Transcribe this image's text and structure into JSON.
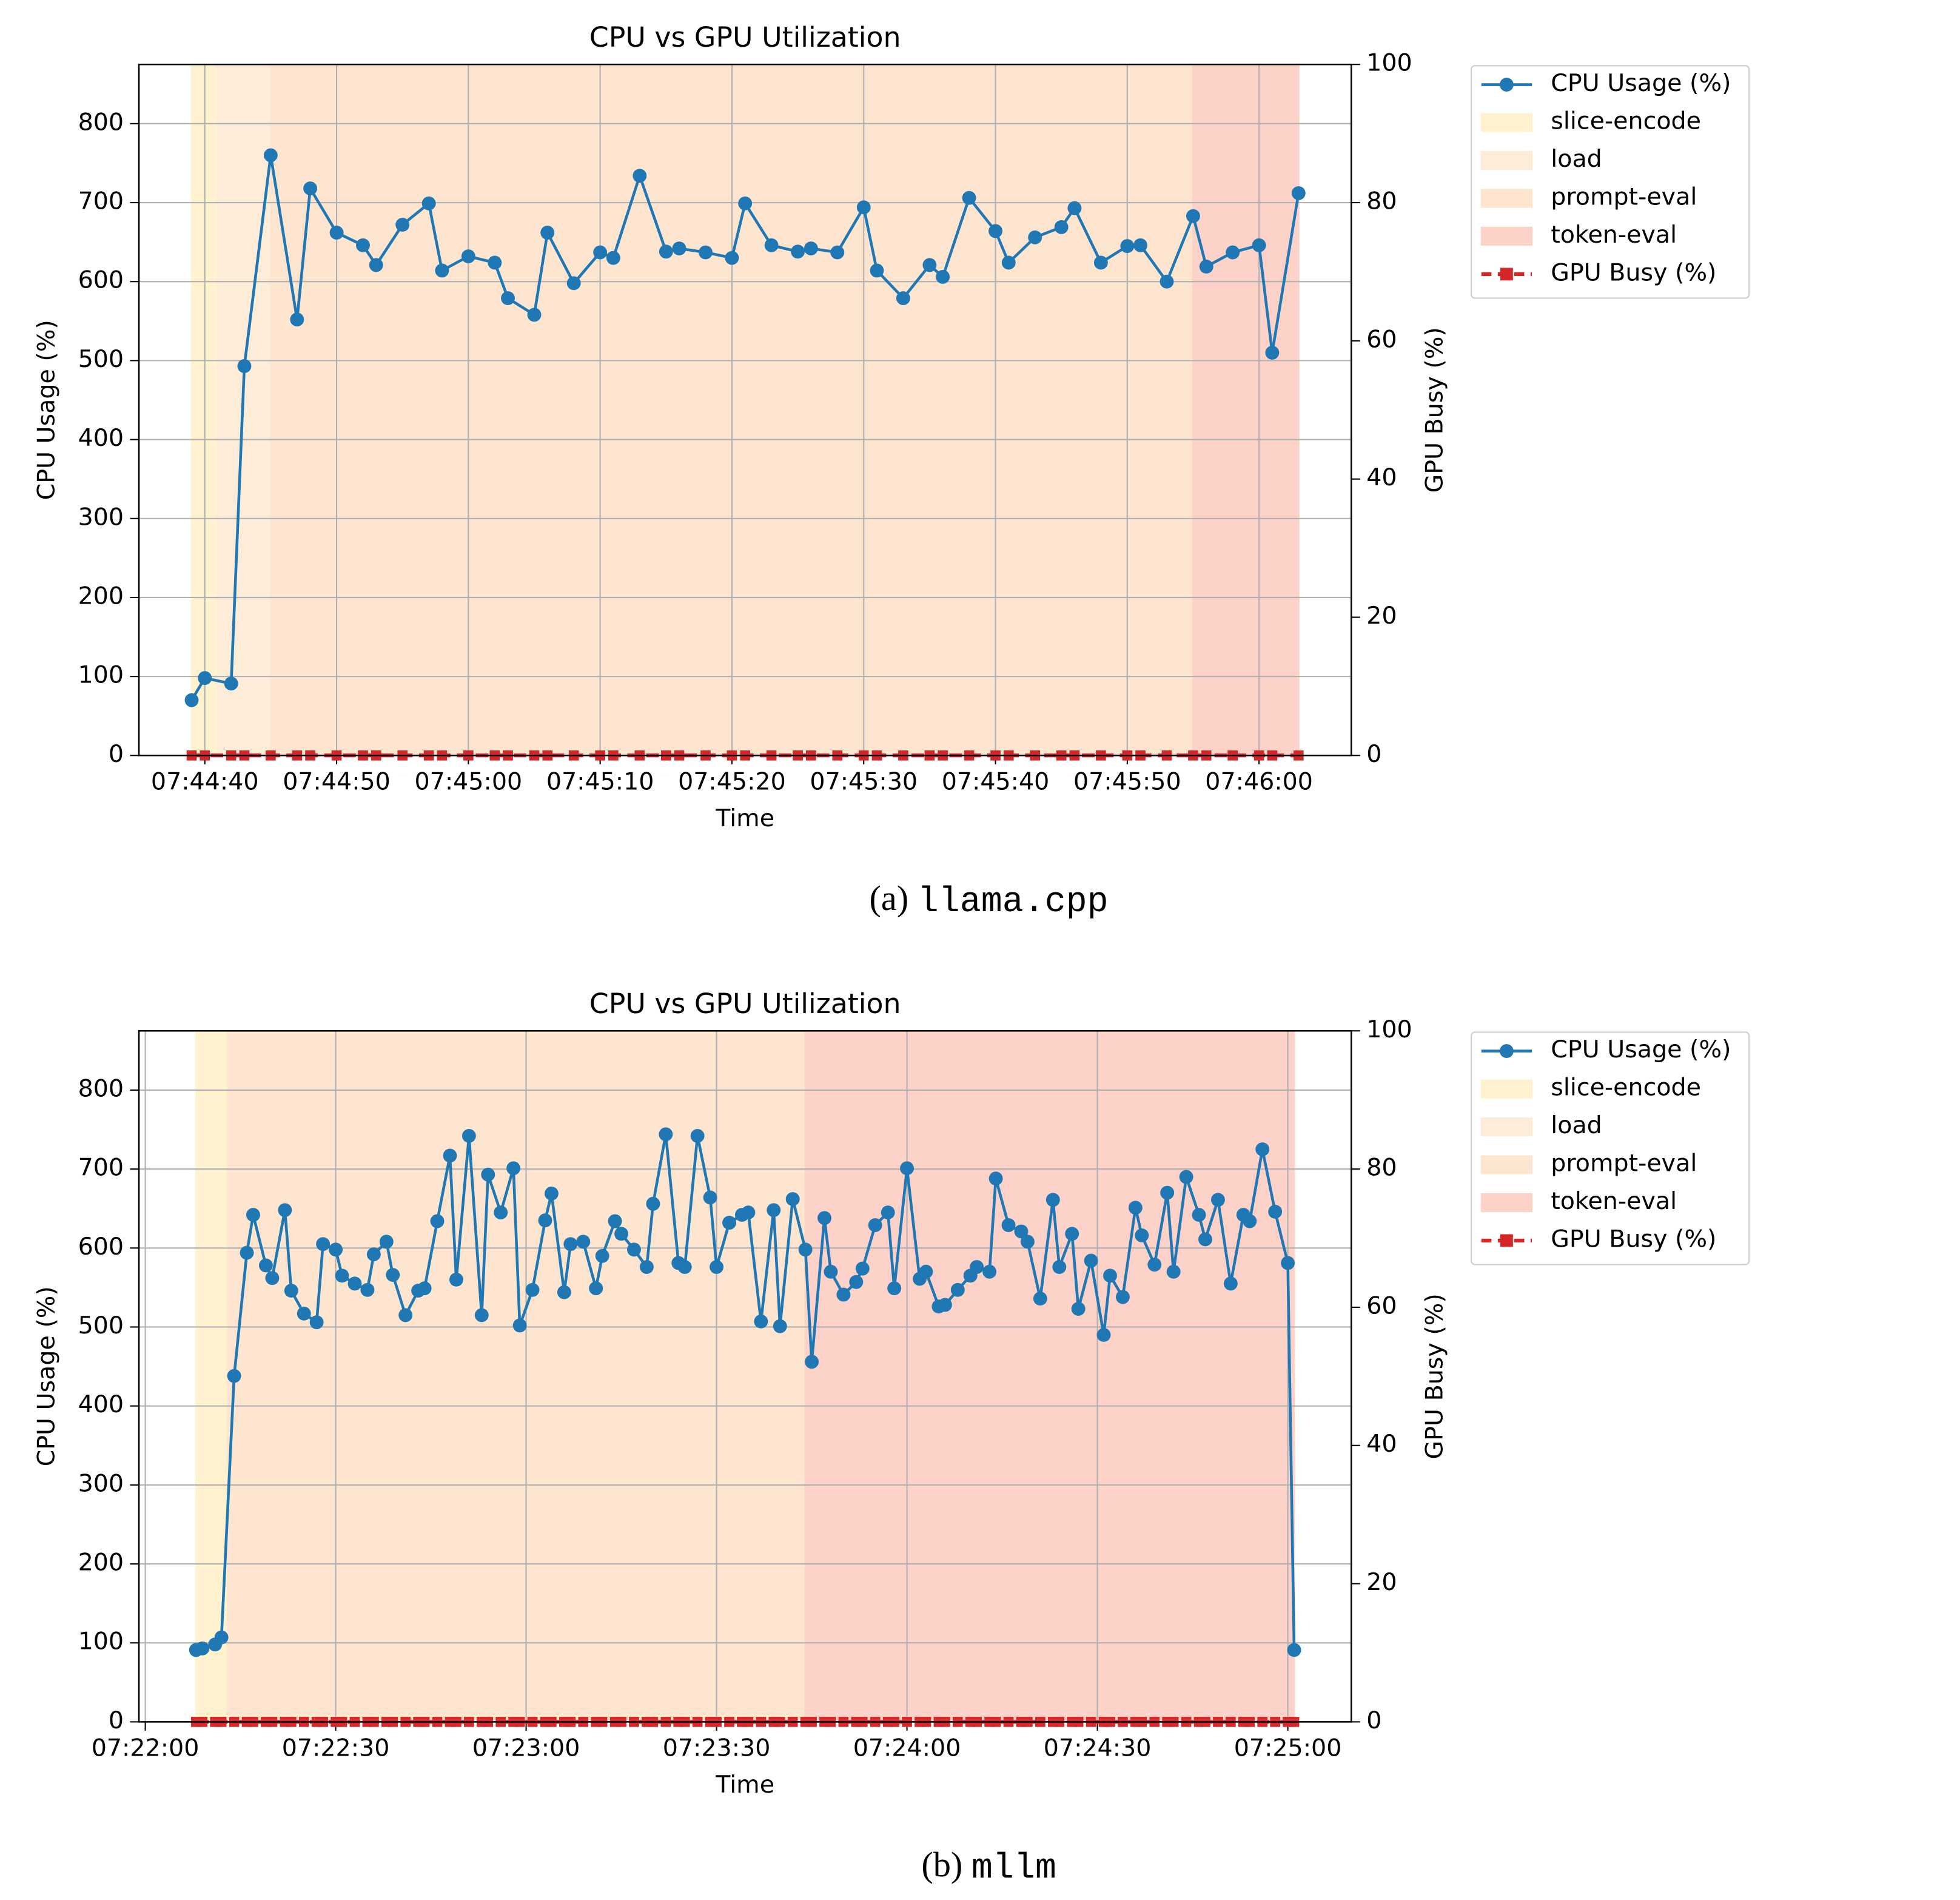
{
  "chart_data": [
    {
      "type": "line",
      "title": "CPU vs GPU Utilization",
      "xlabel": "Time",
      "ylabel": "CPU Usage (%)",
      "y2label": "GPU Busy (%)",
      "caption_label": "(a)",
      "caption_code": "llama.cpp",
      "x": [
        "07:44:39",
        "07:44:40",
        "07:44:42",
        "07:44:43",
        "07:44:45",
        "07:44:47",
        "07:44:48",
        "07:44:50",
        "07:44:52",
        "07:44:53",
        "07:44:55",
        "07:44:57",
        "07:44:58",
        "07:45:00",
        "07:45:02",
        "07:45:03",
        "07:45:05",
        "07:45:06",
        "07:45:08",
        "07:45:10",
        "07:45:11",
        "07:45:13",
        "07:45:15",
        "07:45:16",
        "07:45:18",
        "07:45:20",
        "07:45:21",
        "07:45:23",
        "07:45:25",
        "07:45:26",
        "07:45:28",
        "07:45:30",
        "07:45:31",
        "07:45:33",
        "07:45:35",
        "07:45:36",
        "07:45:38",
        "07:45:40",
        "07:45:41",
        "07:45:43",
        "07:45:45",
        "07:45:46",
        "07:45:48",
        "07:45:50",
        "07:45:51",
        "07:45:53",
        "07:45:55",
        "07:45:56",
        "07:45:58",
        "07:46:00",
        "07:46:01",
        "07:46:03"
      ],
      "series": [
        {
          "name": "CPU Usage (%)",
          "color": "#1f77b4",
          "values": [
            70,
            98,
            91,
            493,
            760,
            552,
            718,
            662,
            646,
            621,
            672,
            699,
            614,
            632,
            624,
            579,
            558,
            662,
            598,
            637,
            630,
            734,
            638,
            642,
            637,
            630,
            699,
            646,
            638,
            642,
            637,
            694,
            614,
            579,
            621,
            606,
            706,
            664,
            624,
            656,
            669,
            693,
            624,
            645,
            646,
            600,
            683,
            619,
            637,
            646,
            510,
            712
          ]
        },
        {
          "name": "GPU Busy (%)",
          "color": "#d62728",
          "axis": "y2",
          "values": [
            0,
            0,
            0,
            0,
            0,
            0,
            0,
            0,
            0,
            0,
            0,
            0,
            0,
            0,
            0,
            0,
            0,
            0,
            0,
            0,
            0,
            0,
            0,
            0,
            0,
            0,
            0,
            0,
            0,
            0,
            0,
            0,
            0,
            0,
            0,
            0,
            0,
            0,
            0,
            0,
            0,
            0,
            0,
            0,
            0,
            0,
            0,
            0,
            0,
            0,
            0,
            0
          ]
        }
      ],
      "phases": [
        {
          "name": "slice-encode",
          "color": "#fff3cf",
          "start": "07:44:39",
          "end": "07:44:41"
        },
        {
          "name": "load",
          "color": "#fdecd8",
          "start": "07:44:41",
          "end": "07:44:45"
        },
        {
          "name": "prompt-eval",
          "color": "#fde5d0",
          "start": "07:44:45",
          "end": "07:45:55"
        },
        {
          "name": "token-eval",
          "color": "#fdd2c8",
          "start": "07:45:55",
          "end": "07:46:03"
        }
      ],
      "xlim": [
        "07:44:35",
        "07:46:07"
      ],
      "xticks": [
        "07:44:40",
        "07:44:50",
        "07:45:00",
        "07:45:10",
        "07:45:20",
        "07:45:30",
        "07:45:40",
        "07:45:50",
        "07:46:00"
      ],
      "ylim": [
        0,
        875
      ],
      "yticks": [
        0,
        100,
        200,
        300,
        400,
        500,
        600,
        700,
        800
      ],
      "y2lim": [
        0,
        100
      ],
      "y2ticks": [
        0,
        20,
        40,
        60,
        80,
        100
      ],
      "grid": true,
      "legend": "outside right"
    },
    {
      "type": "line",
      "title": "CPU vs GPU Utilization",
      "xlabel": "Time",
      "ylabel": "CPU Usage (%)",
      "y2label": "GPU Busy (%)",
      "caption_label": "(b)",
      "caption_code": "mllm",
      "x": [
        "07:22:08",
        "07:22:09",
        "07:22:11",
        "07:22:12",
        "07:22:14",
        "07:22:16",
        "07:22:17",
        "07:22:19",
        "07:22:20",
        "07:22:22",
        "07:22:23",
        "07:22:25",
        "07:22:27",
        "07:22:28",
        "07:22:30",
        "07:22:31",
        "07:22:33",
        "07:22:35",
        "07:22:36",
        "07:22:38",
        "07:22:39",
        "07:22:41",
        "07:22:43",
        "07:22:44",
        "07:22:46",
        "07:22:48",
        "07:22:49",
        "07:22:51",
        "07:22:53",
        "07:22:54",
        "07:22:56",
        "07:22:58",
        "07:22:59",
        "07:23:01",
        "07:23:03",
        "07:23:04",
        "07:23:06",
        "07:23:07",
        "07:23:09",
        "07:23:11",
        "07:23:12",
        "07:23:14",
        "07:23:15",
        "07:23:17",
        "07:23:19",
        "07:23:20",
        "07:23:22",
        "07:23:24",
        "07:23:25",
        "07:23:27",
        "07:23:29",
        "07:23:30",
        "07:23:32",
        "07:23:34",
        "07:23:35",
        "07:23:37",
        "07:23:39",
        "07:23:40",
        "07:23:42",
        "07:23:44",
        "07:23:45",
        "07:23:47",
        "07:23:48",
        "07:23:50",
        "07:23:52",
        "07:23:53",
        "07:23:55",
        "07:23:57",
        "07:23:58",
        "07:24:00",
        "07:24:02",
        "07:24:03",
        "07:24:05",
        "07:24:06",
        "07:24:08",
        "07:24:10",
        "07:24:11",
        "07:24:13",
        "07:24:14",
        "07:24:16",
        "07:24:18",
        "07:24:19",
        "07:24:21",
        "07:24:23",
        "07:24:24",
        "07:24:26",
        "07:24:27",
        "07:24:29",
        "07:24:31",
        "07:24:32",
        "07:24:34",
        "07:24:36",
        "07:24:37",
        "07:24:39",
        "07:24:41",
        "07:24:42",
        "07:24:44",
        "07:24:46",
        "07:24:47",
        "07:24:49",
        "07:24:51",
        "07:24:53",
        "07:24:54",
        "07:24:56",
        "07:24:58",
        "07:25:00",
        "07:25:01"
      ],
      "series": [
        {
          "name": "CPU Usage (%)",
          "color": "#1f77b4",
          "values": [
            91,
            93,
            98,
            107,
            438,
            594,
            642,
            578,
            562,
            648,
            546,
            517,
            506,
            605,
            598,
            565,
            555,
            547,
            592,
            608,
            566,
            515,
            546,
            549,
            634,
            717,
            560,
            742,
            515,
            693,
            645,
            701,
            502,
            547,
            635,
            669,
            544,
            605,
            608,
            549,
            590,
            634,
            618,
            598,
            576,
            656,
            744,
            581,
            576,
            742,
            664,
            576,
            632,
            642,
            645,
            507,
            648,
            501,
            662,
            598,
            456,
            638,
            570,
            541,
            557,
            574,
            629,
            645,
            549,
            701,
            561,
            570,
            526,
            528,
            547,
            565,
            576,
            570,
            688,
            629,
            621,
            608,
            536,
            661,
            576,
            618,
            523,
            584,
            490,
            565,
            538,
            651,
            616,
            579,
            670,
            570,
            690,
            642,
            611,
            661,
            555,
            642,
            634,
            725,
            646,
            581,
            91
          ]
        },
        {
          "name": "GPU Busy (%)",
          "color": "#d62728",
          "axis": "y2",
          "values": [
            0,
            0,
            0,
            0,
            0,
            0,
            0,
            0,
            0,
            0,
            0,
            0,
            0,
            0,
            0,
            0,
            0,
            0,
            0,
            0,
            0,
            0,
            0,
            0,
            0,
            0,
            0,
            0,
            0,
            0,
            0,
            0,
            0,
            0,
            0,
            0,
            0,
            0,
            0,
            0,
            0,
            0,
            0,
            0,
            0,
            0,
            0,
            0,
            0,
            0,
            0,
            0,
            0,
            0,
            0,
            0,
            0,
            0,
            0,
            0,
            0,
            0,
            0,
            0,
            0,
            0,
            0,
            0,
            0,
            0,
            0,
            0,
            0,
            0,
            0,
            0,
            0,
            0,
            0,
            0,
            0,
            0,
            0,
            0,
            0,
            0,
            0,
            0,
            0,
            0,
            0,
            0,
            0,
            0,
            0,
            0,
            0,
            0,
            0,
            0,
            0,
            0,
            0,
            0,
            0,
            0,
            0
          ]
        }
      ],
      "phases": [
        {
          "name": "slice-encode",
          "color": "#fff3cf",
          "start": "07:22:08",
          "end": "07:22:13"
        },
        {
          "name": "load",
          "color": "#fdecd8",
          "start": "07:22:13",
          "end": "07:22:13"
        },
        {
          "name": "prompt-eval",
          "color": "#fde5d0",
          "start": "07:22:13",
          "end": "07:23:44"
        },
        {
          "name": "token-eval",
          "color": "#fdd2c8",
          "start": "07:23:44",
          "end": "07:25:01"
        }
      ],
      "xlim": [
        "07:21:59",
        "07:25:10"
      ],
      "xticks": [
        "07:22:00",
        "07:22:30",
        "07:23:00",
        "07:23:30",
        "07:24:00",
        "07:24:30",
        "07:25:00"
      ],
      "ylim": [
        0,
        875
      ],
      "yticks": [
        0,
        100,
        200,
        300,
        400,
        500,
        600,
        700,
        800
      ],
      "y2lim": [
        0,
        100
      ],
      "y2ticks": [
        0,
        20,
        40,
        60,
        80,
        100
      ],
      "grid": true,
      "legend": "outside right"
    }
  ]
}
